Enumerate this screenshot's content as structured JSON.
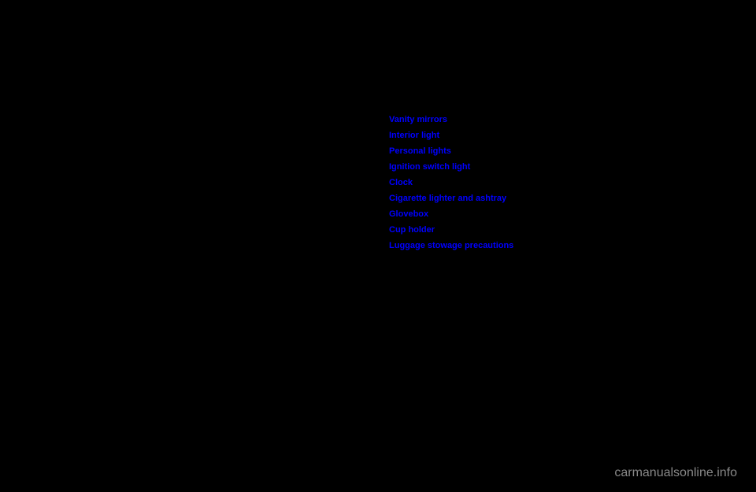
{
  "links": {
    "items": [
      "Vanity mirrors",
      "Interior light",
      "Personal lights",
      "Ignition switch light",
      "Clock",
      "Cigarette lighter and ashtray",
      "Glovebox",
      "Cup holder",
      "Luggage stowage precautions"
    ]
  },
  "watermark": {
    "text": "carmanualsonline.info"
  }
}
